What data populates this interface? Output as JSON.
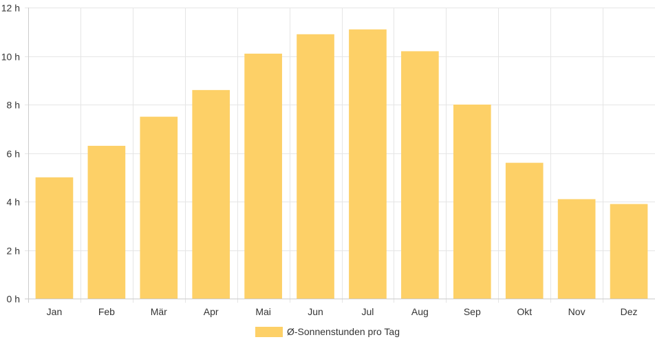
{
  "chart_data": {
    "type": "bar",
    "categories": [
      "Jan",
      "Feb",
      "Mär",
      "Apr",
      "Mai",
      "Jun",
      "Jul",
      "Aug",
      "Sep",
      "Okt",
      "Nov",
      "Dez"
    ],
    "series": [
      {
        "name": "Ø-Sonnenstunden pro Tag",
        "values": [
          5.0,
          6.3,
          7.5,
          8.6,
          10.1,
          10.9,
          11.1,
          10.2,
          8.0,
          5.6,
          4.1,
          3.9
        ]
      }
    ],
    "ylim": [
      0,
      12
    ],
    "yticks": [
      0,
      2,
      4,
      6,
      8,
      10,
      12
    ],
    "ytick_labels": [
      "0 h",
      "2 h",
      "4 h",
      "6 h",
      "8 h",
      "10 h",
      "12 h"
    ],
    "grid": true,
    "legend": "bottom",
    "colors": {
      "bar": "#fdd067",
      "grid": "#e5e5e5",
      "axis": "#cccccc",
      "text": "#333333"
    }
  }
}
